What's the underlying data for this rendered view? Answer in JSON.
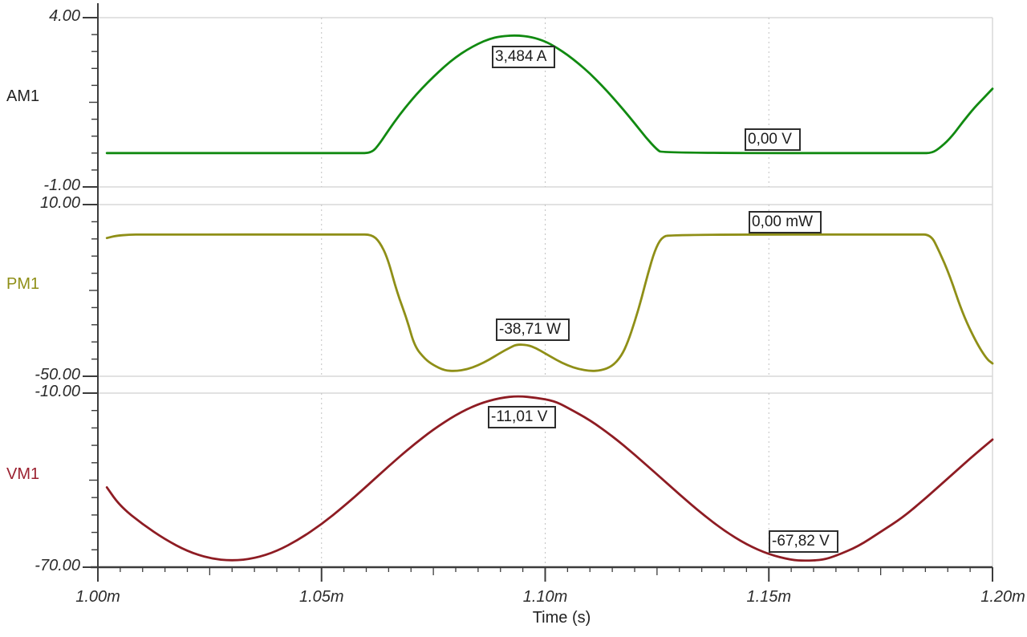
{
  "chart_data": {
    "type": "line",
    "x_label": "Time (s)",
    "x_ticks": [
      "1.00m",
      "1.05m",
      "1.10m",
      "1.15m",
      "1.20m"
    ],
    "x_tick_values": [
      1.0,
      1.05,
      1.1,
      1.15,
      1.2
    ],
    "x_range_ms": [
      1.0,
      1.2
    ],
    "grid": "vertical-dashed-at-interior-ticks",
    "legend_position": "left-of-each-panel",
    "panels": [
      {
        "name": "AM1",
        "unit": "A",
        "color": "#118a11",
        "name_color": "#222222",
        "y_range": [
          -1,
          4
        ],
        "y_max_label": "4.00",
        "y_min_label": "-1.00",
        "annotations": [
          {
            "text": "3,484 A",
            "anchor_t": 1.0881,
            "anchor_v": 3.17
          },
          {
            "text": "0,00 V",
            "anchor_t": 1.1446,
            "anchor_v": 0.73
          }
        ],
        "points": [
          [
            1.002,
            0
          ],
          [
            1.058,
            0
          ],
          [
            1.0612,
            0
          ],
          [
            1.063,
            0.28
          ],
          [
            1.065,
            0.68
          ],
          [
            1.0675,
            1.14
          ],
          [
            1.07,
            1.55
          ],
          [
            1.0725,
            1.92
          ],
          [
            1.075,
            2.25
          ],
          [
            1.0775,
            2.56
          ],
          [
            1.08,
            2.83
          ],
          [
            1.0825,
            3.05
          ],
          [
            1.085,
            3.23
          ],
          [
            1.0875,
            3.37
          ],
          [
            1.09,
            3.45
          ],
          [
            1.0935,
            3.48
          ],
          [
            1.097,
            3.43
          ],
          [
            1.1,
            3.3
          ],
          [
            1.1025,
            3.12
          ],
          [
            1.105,
            2.9
          ],
          [
            1.1075,
            2.64
          ],
          [
            1.11,
            2.35
          ],
          [
            1.1125,
            2.02
          ],
          [
            1.115,
            1.66
          ],
          [
            1.1175,
            1.28
          ],
          [
            1.12,
            0.88
          ],
          [
            1.1225,
            0.46
          ],
          [
            1.125,
            0.1
          ],
          [
            1.1262,
            0
          ],
          [
            1.184,
            0
          ],
          [
            1.1865,
            0
          ],
          [
            1.1885,
            0.18
          ],
          [
            1.191,
            0.5
          ],
          [
            1.1934,
            0.93
          ],
          [
            1.196,
            1.35
          ],
          [
            1.198,
            1.62
          ],
          [
            1.2,
            1.9
          ]
        ]
      },
      {
        "name": "PM1",
        "unit": "W",
        "color": "#8f8f17",
        "name_color": "#8f8f17",
        "y_range": [
          -50,
          10
        ],
        "y_max_label": "10.00",
        "y_min_label": "-50.00",
        "annotations": [
          {
            "text": "0,00 mW",
            "anchor_t": 1.1455,
            "anchor_v": 7.76
          },
          {
            "text": "-38,71 W",
            "anchor_t": 1.089,
            "anchor_v": -29.8
          }
        ],
        "points": [
          [
            1.002,
            -1.7
          ],
          [
            1.004,
            -0.9
          ],
          [
            1.007,
            -0.5
          ],
          [
            1.01,
            -0.45
          ],
          [
            1.058,
            -0.45
          ],
          [
            1.0612,
            -0.45
          ],
          [
            1.063,
            -3
          ],
          [
            1.0648,
            -8.8
          ],
          [
            1.0669,
            -20.8
          ],
          [
            1.0691,
            -30.1
          ],
          [
            1.0708,
            -39.6
          ],
          [
            1.0732,
            -44.1
          ],
          [
            1.075,
            -46.1
          ],
          [
            1.0775,
            -48
          ],
          [
            1.08,
            -48.2
          ],
          [
            1.0825,
            -47.6
          ],
          [
            1.085,
            -46.2
          ],
          [
            1.0875,
            -44.2
          ],
          [
            1.09,
            -41.8
          ],
          [
            1.092,
            -40.1
          ],
          [
            1.0935,
            -38.9
          ],
          [
            1.096,
            -39
          ],
          [
            1.098,
            -40.2
          ],
          [
            1.1,
            -42
          ],
          [
            1.1025,
            -44.3
          ],
          [
            1.105,
            -46.2
          ],
          [
            1.1075,
            -47.5
          ],
          [
            1.11,
            -48.2
          ],
          [
            1.1125,
            -48
          ],
          [
            1.115,
            -46.5
          ],
          [
            1.117,
            -43
          ],
          [
            1.1185,
            -38
          ],
          [
            1.12,
            -31
          ],
          [
            1.1215,
            -23
          ],
          [
            1.123,
            -14
          ],
          [
            1.1245,
            -6
          ],
          [
            1.126,
            -1.5
          ],
          [
            1.128,
            -0.45
          ],
          [
            1.183,
            -0.45
          ],
          [
            1.1862,
            -0.45
          ],
          [
            1.188,
            -6
          ],
          [
            1.1905,
            -15
          ],
          [
            1.1933,
            -28
          ],
          [
            1.1963,
            -38
          ],
          [
            1.1987,
            -44
          ],
          [
            1.2,
            -45.5
          ]
        ]
      },
      {
        "name": "VM1",
        "unit": "V",
        "color": "#8e1c23",
        "name_color": "#9b2130",
        "y_range": [
          -70,
          -10
        ],
        "y_max_label": "-10.00",
        "y_min_label": "-70.00",
        "annotations": [
          {
            "text": "-11,01 V",
            "anchor_t": 1.0872,
            "anchor_v": -14.4
          },
          {
            "text": "-67,82 V",
            "anchor_t": 1.15,
            "anchor_v": -57.3
          }
        ],
        "points": [
          [
            1.002,
            -42.5
          ],
          [
            1.005,
            -49
          ],
          [
            1.01,
            -55.2
          ],
          [
            1.015,
            -60.4
          ],
          [
            1.02,
            -64.5
          ],
          [
            1.025,
            -67
          ],
          [
            1.03,
            -67.8
          ],
          [
            1.035,
            -67
          ],
          [
            1.04,
            -64.5
          ],
          [
            1.045,
            -60.4
          ],
          [
            1.05,
            -55.2
          ],
          [
            1.055,
            -49
          ],
          [
            1.06,
            -42.2
          ],
          [
            1.065,
            -35.2
          ],
          [
            1.07,
            -28.5
          ],
          [
            1.075,
            -22.5
          ],
          [
            1.08,
            -17.5
          ],
          [
            1.085,
            -13.7
          ],
          [
            1.09,
            -11.6
          ],
          [
            1.094,
            -11
          ],
          [
            1.098,
            -11.6
          ],
          [
            1.102,
            -12.7
          ],
          [
            1.105,
            -15
          ],
          [
            1.11,
            -19.3
          ],
          [
            1.115,
            -24.8
          ],
          [
            1.12,
            -31.2
          ],
          [
            1.125,
            -38
          ],
          [
            1.13,
            -44.9
          ],
          [
            1.135,
            -51.5
          ],
          [
            1.14,
            -57.4
          ],
          [
            1.145,
            -62.2
          ],
          [
            1.15,
            -65.6
          ],
          [
            1.155,
            -67.5
          ],
          [
            1.158,
            -67.8
          ],
          [
            1.162,
            -67.5
          ],
          [
            1.165,
            -66.1
          ],
          [
            1.17,
            -62.8
          ],
          [
            1.175,
            -57.8
          ],
          [
            1.18,
            -52.8
          ],
          [
            1.185,
            -46.3
          ],
          [
            1.19,
            -39.4
          ],
          [
            1.195,
            -32.5
          ],
          [
            1.2,
            -26
          ]
        ]
      }
    ]
  }
}
